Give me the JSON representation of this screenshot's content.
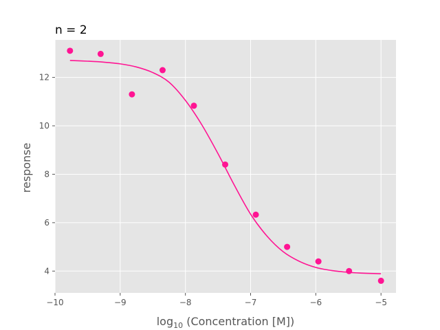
{
  "chart_data": {
    "type": "scatter",
    "title": "n = 2",
    "xlabel": "log10 (Concentration [M])",
    "ylabel": "response",
    "xlim": [
      -10,
      -4.77
    ],
    "ylim": [
      3.1,
      13.55
    ],
    "grid": true,
    "legend": "none",
    "xticks": [
      {
        "value": -10,
        "label": "−10"
      },
      {
        "value": -9,
        "label": "−9"
      },
      {
        "value": -8,
        "label": "−8"
      },
      {
        "value": -7,
        "label": "−7"
      },
      {
        "value": -6,
        "label": "−6"
      },
      {
        "value": -5,
        "label": "−5"
      }
    ],
    "yticks": [
      {
        "value": 4,
        "label": "4"
      },
      {
        "value": 6,
        "label": "6"
      },
      {
        "value": 8,
        "label": "8"
      },
      {
        "value": 10,
        "label": "10"
      },
      {
        "value": 12,
        "label": "12"
      }
    ],
    "series": [
      {
        "kind": "points",
        "color": "#ff1493",
        "x": [
          -9.77,
          -9.3,
          -8.82,
          -8.35,
          -7.87,
          -7.39,
          -6.92,
          -6.44,
          -5.96,
          -5.49,
          -5.0
        ],
        "y": [
          13.1,
          12.97,
          11.3,
          12.3,
          10.83,
          8.4,
          6.33,
          5.0,
          4.4,
          4.0,
          3.6
        ]
      },
      {
        "kind": "fit-curve",
        "color": "#ff1493",
        "x": [
          -9.77,
          -9.5,
          -9.25,
          -9.0,
          -8.75,
          -8.5,
          -8.25,
          -8.0,
          -7.75,
          -7.5,
          -7.25,
          -7.0,
          -6.75,
          -6.5,
          -6.25,
          -6.0,
          -5.75,
          -5.5,
          -5.25,
          -5.0
        ],
        "y": [
          12.7,
          12.67,
          12.63,
          12.56,
          12.43,
          12.2,
          11.8,
          11.05,
          10.05,
          8.85,
          7.55,
          6.35,
          5.45,
          4.8,
          4.4,
          4.15,
          4.02,
          3.95,
          3.91,
          3.89
        ]
      }
    ]
  }
}
